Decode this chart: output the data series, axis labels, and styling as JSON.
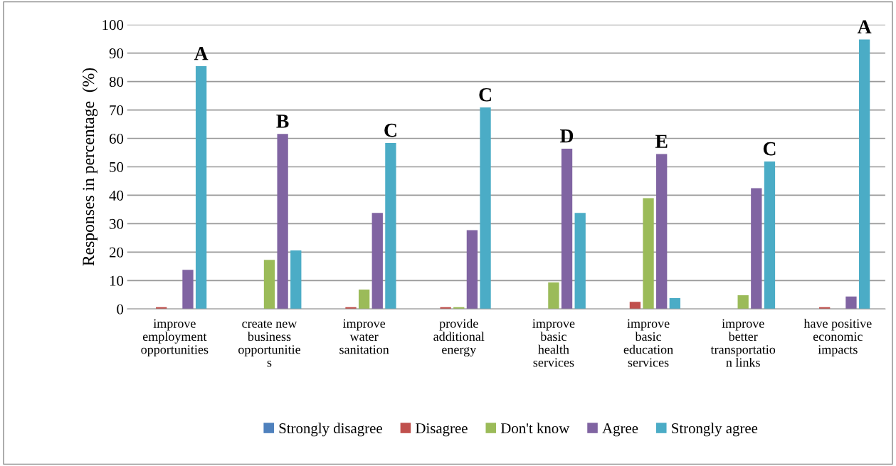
{
  "chart_data": {
    "type": "bar",
    "ylabel": "Responses in percentage  (%)",
    "categories": [
      "improve\nemployment\nopportunities",
      "create new\nbusiness\nopportunitie\ns",
      "improve\nwater\nsanitation",
      "provide\nadditional\nenergy",
      "improve\nbasic\nhealth\nservices",
      "improve\nbasic\neducation\nservices",
      "improve\nbetter\ntransportatio\nn links",
      "have positive\neconomic\nimpacts"
    ],
    "series": [
      {
        "name": "Strongly disagree",
        "color": "#4f81bd",
        "values": [
          0,
          0,
          0,
          0,
          0,
          0,
          0,
          0
        ]
      },
      {
        "name": "Disagree",
        "color": "#c0504d",
        "values": [
          0.6,
          0,
          0.6,
          0.6,
          0,
          2.5,
          0,
          0.6
        ]
      },
      {
        "name": "Don't know",
        "color": "#9bbb59",
        "values": [
          0,
          17.3,
          6.8,
          0.6,
          9.3,
          39.0,
          4.8,
          0
        ]
      },
      {
        "name": "Agree",
        "color": "#8064a2",
        "values": [
          13.8,
          61.6,
          33.8,
          27.7,
          56.4,
          54.5,
          42.5,
          4.4
        ]
      },
      {
        "name": "Strongly agree",
        "color": "#4bacc6",
        "values": [
          85.4,
          20.6,
          58.4,
          70.9,
          33.8,
          3.8,
          51.9,
          94.8
        ]
      }
    ],
    "annotations": [
      "A",
      "B",
      "C",
      "C",
      "D",
      "E",
      "C",
      "A"
    ],
    "ylim": [
      0,
      100
    ],
    "yticks": [
      0,
      10,
      20,
      30,
      40,
      50,
      60,
      70,
      80,
      90,
      100
    ],
    "grid": "y",
    "legend": "bottom"
  }
}
